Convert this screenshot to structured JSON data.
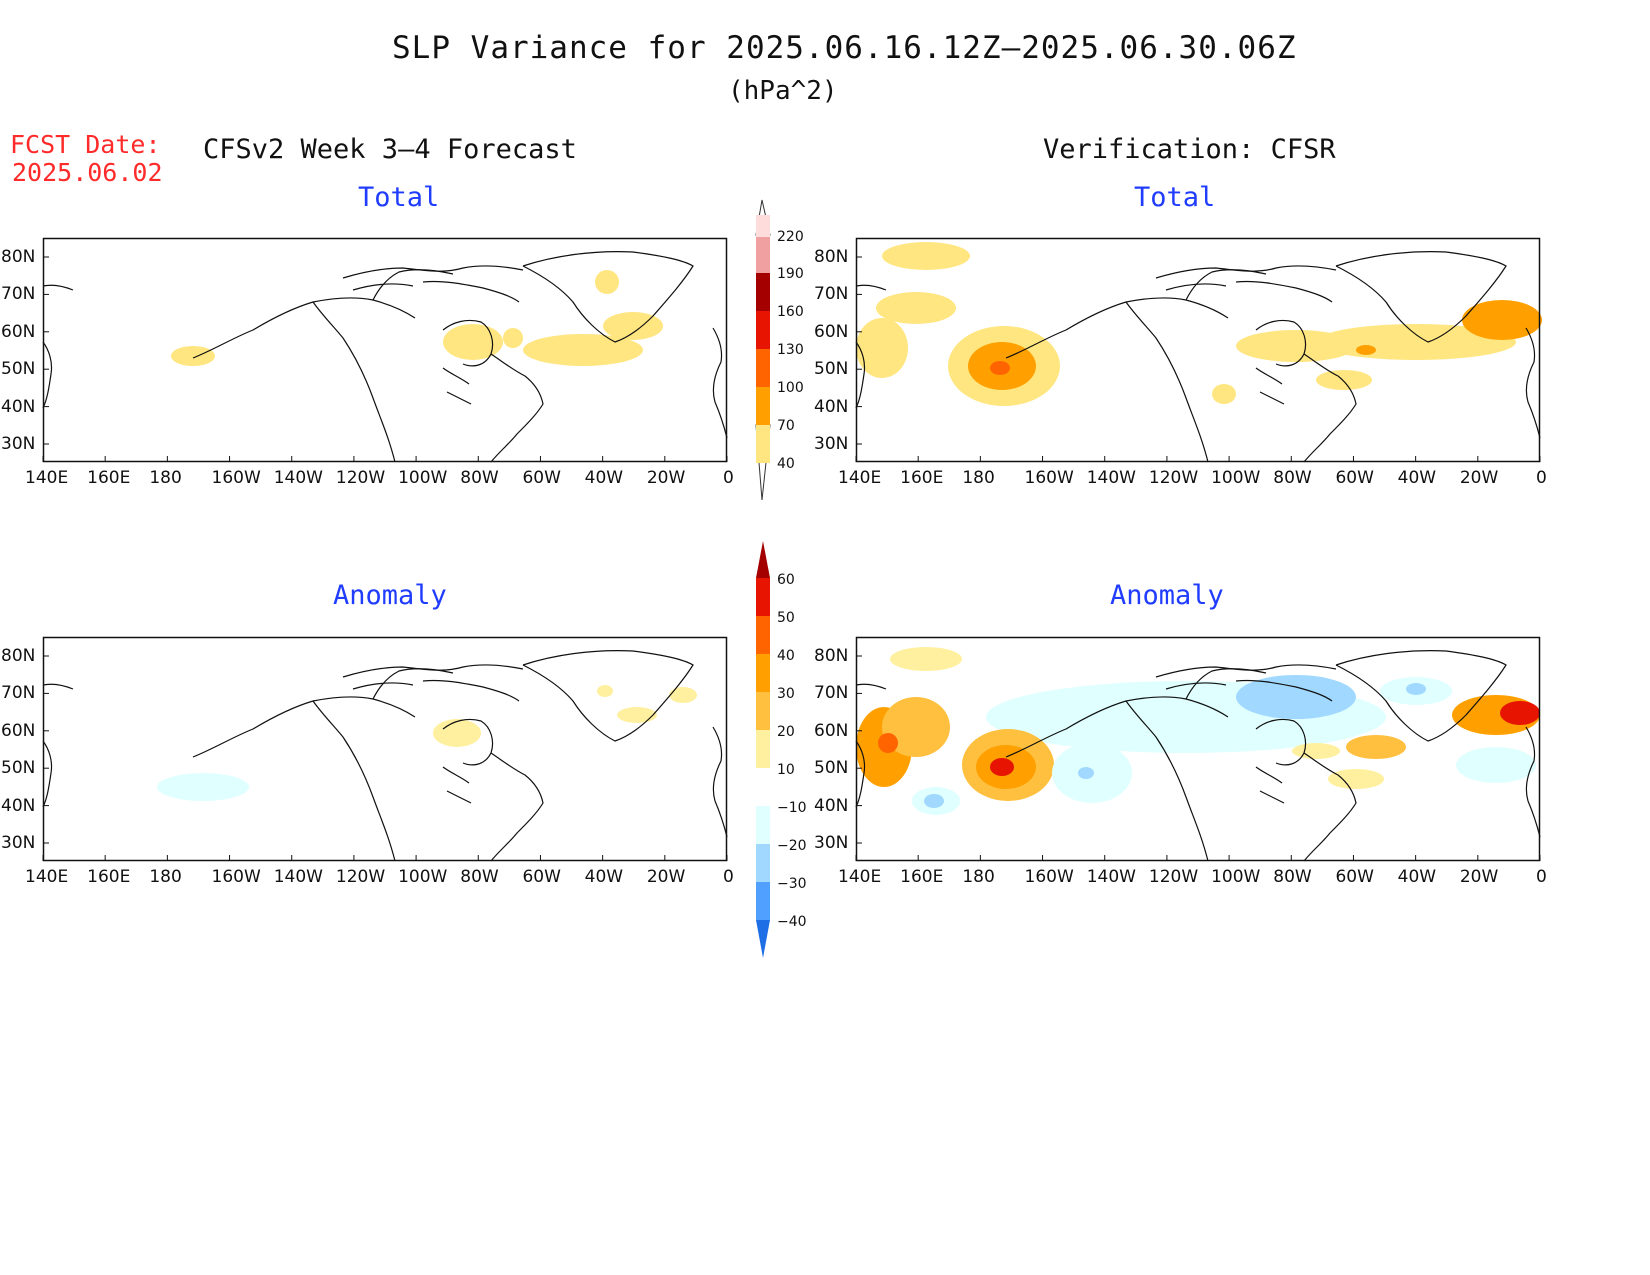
{
  "title": "SLP Variance for 2025.06.16.12Z—2025.06.30.06Z",
  "units": "(hPa^2)",
  "fcst_date": {
    "label": "FCST Date:",
    "value": "2025.06.02"
  },
  "left_header": "CFSv2 Week 3–4 Forecast",
  "right_header": "Verification: CFSR",
  "panel_titles": {
    "total": "Total",
    "anomaly": "Anomaly"
  },
  "lon_ticks": [
    "140E",
    "160E",
    "180",
    "160W",
    "140W",
    "120W",
    "100W",
    "80W",
    "60W",
    "40W",
    "20W",
    "0"
  ],
  "lat_ticks": [
    "30N",
    "40N",
    "50N",
    "60N",
    "70N",
    "80N"
  ],
  "total_colorbar": {
    "levels": [
      "40",
      "70",
      "100",
      "130",
      "160",
      "190",
      "220"
    ],
    "colors": [
      "#ffe680",
      "#ffa000",
      "#ff6400",
      "#e61400",
      "#a50000",
      "#f0a0a0",
      "#ffdcdc"
    ]
  },
  "anomaly_colorbar": {
    "levels": [
      "60",
      "50",
      "40",
      "30",
      "20",
      "10",
      "−10",
      "−20",
      "−30",
      "−40"
    ],
    "colors_top_to_bottom": [
      "#a50000",
      "#e61400",
      "#ff6400",
      "#ffa000",
      "#ffc040",
      "#fff0a0",
      "#ffffff",
      "#e0ffff",
      "#a0d8ff",
      "#50a0ff",
      "#1e6ee6",
      "#0a46c8"
    ]
  },
  "colors": {
    "title_blue": "#1f3cff",
    "fcst_red": "#ff2a2a"
  }
}
